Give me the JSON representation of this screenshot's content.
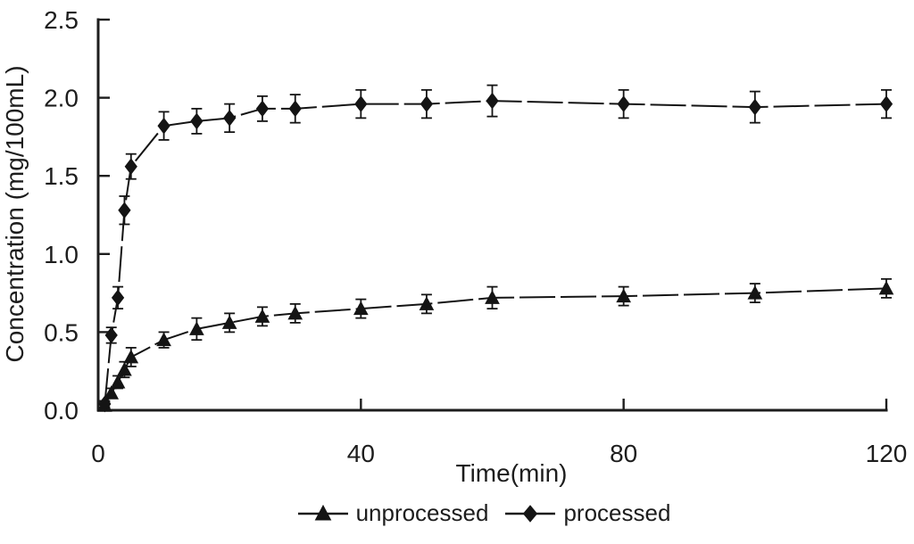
{
  "figure": {
    "background_color": "#ffffff",
    "ink_color": "#1d1d1d"
  },
  "chart_data": {
    "type": "line",
    "title": "",
    "xlabel": "Time(min)",
    "ylabel": "Concentration (mg/100mL)",
    "xlim": [
      0,
      120
    ],
    "ylim": [
      0,
      2.5
    ],
    "x_ticks": [
      "0",
      "40",
      "80",
      "120"
    ],
    "y_ticks": [
      "0.0",
      "0.5",
      "1.0",
      "1.5",
      "2.0",
      "2.5"
    ],
    "grid": false,
    "legend_position": "bottom-center",
    "error_bars": true,
    "line_style": "long-dash",
    "series": [
      {
        "name": "unprocessed",
        "marker": "triangle",
        "color": "#141414",
        "x": [
          1,
          2,
          3,
          4,
          5,
          10,
          15,
          20,
          25,
          30,
          40,
          50,
          60,
          80,
          100,
          120
        ],
        "y": [
          0.03,
          0.11,
          0.18,
          0.26,
          0.34,
          0.45,
          0.52,
          0.56,
          0.6,
          0.62,
          0.65,
          0.68,
          0.72,
          0.73,
          0.75,
          0.78
        ],
        "err": [
          0.02,
          0.03,
          0.04,
          0.05,
          0.06,
          0.05,
          0.07,
          0.06,
          0.06,
          0.06,
          0.06,
          0.06,
          0.07,
          0.06,
          0.06,
          0.06
        ]
      },
      {
        "name": "processed",
        "marker": "diamond",
        "color": "#141414",
        "x": [
          1,
          2,
          3,
          4,
          5,
          10,
          15,
          20,
          25,
          30,
          40,
          50,
          60,
          80,
          100,
          120
        ],
        "y": [
          0.04,
          0.48,
          0.72,
          1.28,
          1.56,
          1.82,
          1.85,
          1.87,
          1.93,
          1.93,
          1.96,
          1.96,
          1.98,
          1.96,
          1.94,
          1.96
        ],
        "err": [
          0.02,
          0.05,
          0.07,
          0.09,
          0.08,
          0.09,
          0.08,
          0.09,
          0.08,
          0.09,
          0.09,
          0.09,
          0.1,
          0.09,
          0.1,
          0.09
        ]
      }
    ]
  }
}
